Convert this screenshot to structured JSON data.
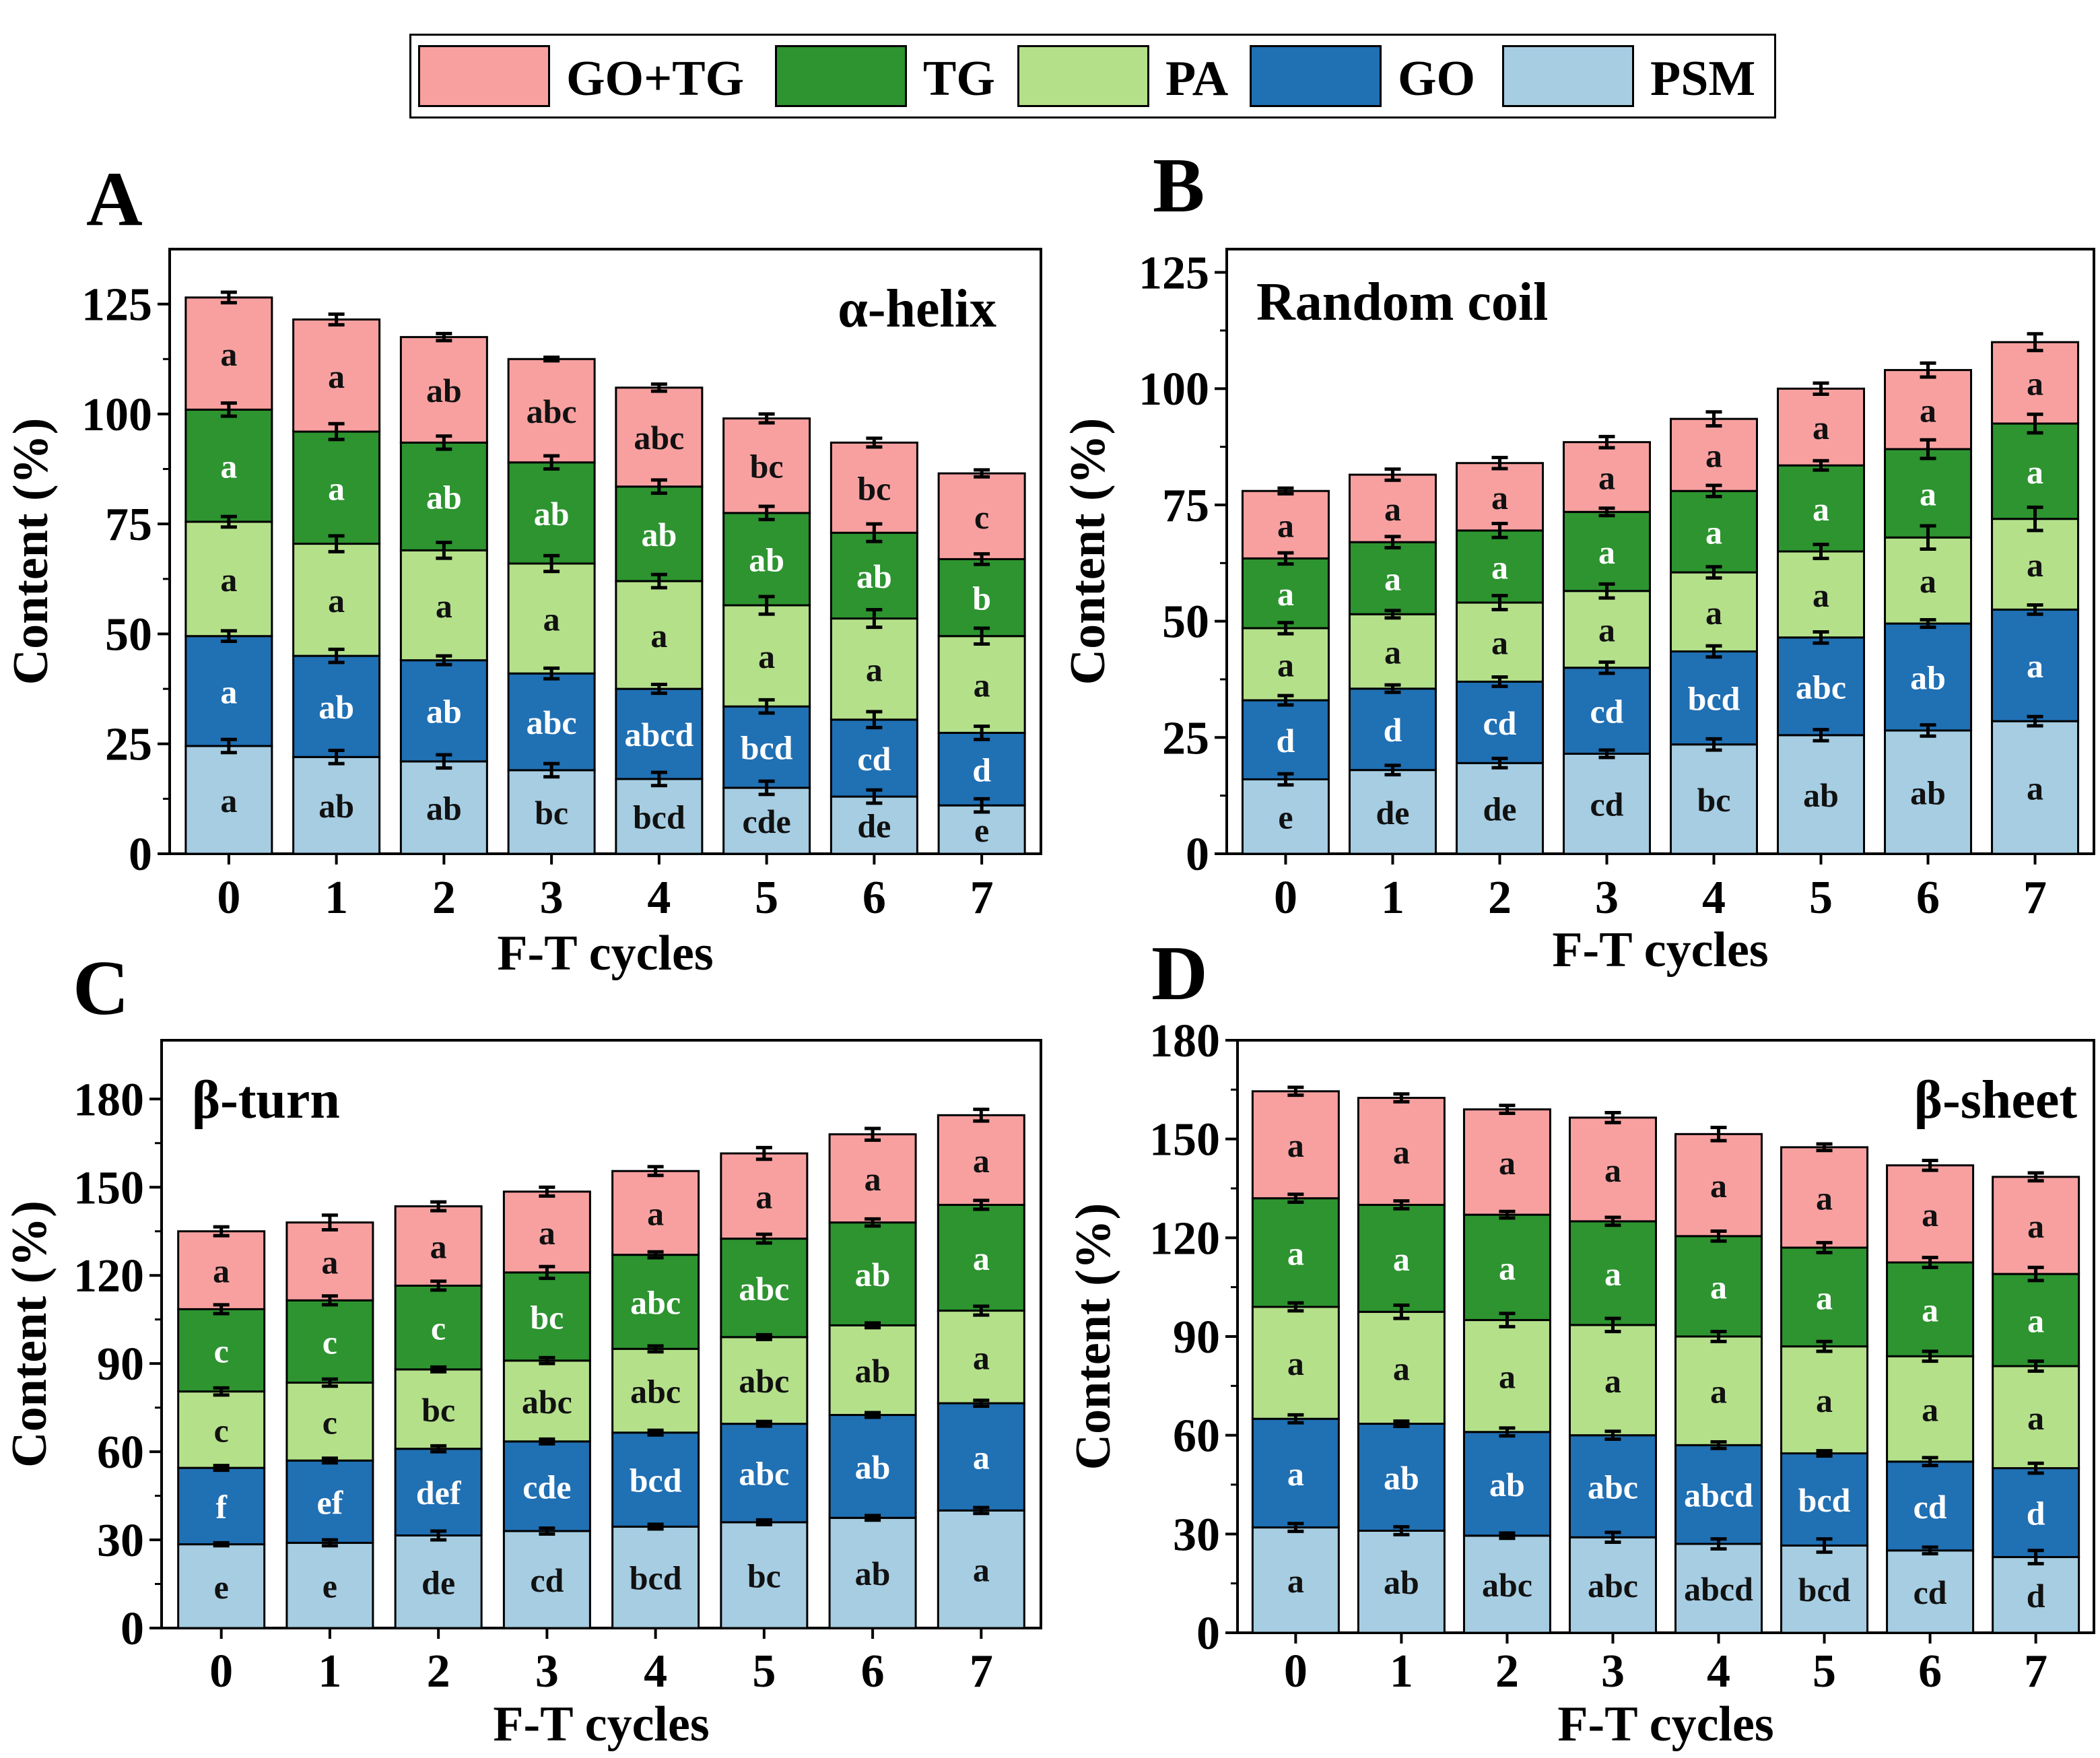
{
  "legend": {
    "items": [
      {
        "label": "GO+TG",
        "color": "#f8a0a0"
      },
      {
        "label": "TG",
        "color": "#2d9430"
      },
      {
        "label": "PA",
        "color": "#b4e08a"
      },
      {
        "label": "GO",
        "color": "#2070b4"
      },
      {
        "label": "PSM",
        "color": "#a6cde2"
      }
    ]
  },
  "chart_data": [
    {
      "panel": "A",
      "type": "bar",
      "stacked": true,
      "title": "α-helix",
      "xlabel": "F-T cycles",
      "ylabel": "Content (%)",
      "categories": [
        "0",
        "1",
        "2",
        "3",
        "4",
        "5",
        "6",
        "7"
      ],
      "ylim": [
        0,
        137.5
      ],
      "yticks": [
        0,
        25,
        50,
        75,
        100,
        125
      ],
      "series": [
        {
          "name": "PSM",
          "values": [
            24.5,
            22,
            21,
            19,
            17,
            15,
            13,
            11
          ],
          "errors": [
            1.5,
            1.5,
            1.5,
            1.5,
            1.5,
            1.5,
            1.5,
            1.5
          ],
          "labels": [
            "a",
            "ab",
            "ab",
            "bc",
            "bcd",
            "cde",
            "de",
            "e"
          ]
        },
        {
          "name": "GO",
          "values": [
            25,
            23,
            23,
            22,
            20.5,
            18.5,
            17.5,
            16.5
          ],
          "errors": [
            1.2,
            1.5,
            1,
            1.2,
            1,
            1.5,
            1.8,
            1.5
          ],
          "labels": [
            "a",
            "ab",
            "ab",
            "abc",
            "abcd",
            "bcd",
            "cd",
            "d"
          ]
        },
        {
          "name": "PA",
          "values": [
            26,
            25.5,
            25,
            25,
            24.5,
            23,
            23,
            22
          ],
          "errors": [
            1.2,
            1.8,
            1.8,
            1.8,
            1.5,
            2,
            2,
            1.8
          ],
          "labels": [
            "a",
            "a",
            "a",
            "a",
            "a",
            "a",
            "a",
            "a"
          ]
        },
        {
          "name": "TG",
          "values": [
            25.5,
            25.5,
            24.5,
            23,
            21.5,
            21,
            19.5,
            17.5
          ],
          "errors": [
            1.5,
            1.8,
            1.5,
            1.5,
            1.5,
            1.5,
            2,
            1.2
          ],
          "labels": [
            "a",
            "a",
            "ab",
            "ab",
            "ab",
            "ab",
            "ab",
            "b"
          ]
        },
        {
          "name": "GO+TG",
          "values": [
            25.5,
            25.5,
            24,
            23.5,
            22.5,
            21.5,
            20.5,
            19.5
          ],
          "errors": [
            1.2,
            1.2,
            0.8,
            0.4,
            0.8,
            1,
            1,
            0.8
          ],
          "labels": [
            "a",
            "a",
            "ab",
            "abc",
            "abc",
            "bc",
            "bc",
            "c"
          ]
        }
      ]
    },
    {
      "panel": "B",
      "type": "bar",
      "stacked": true,
      "title": "Random coil",
      "xlabel": "F-T cycles",
      "ylabel": "Content (%)",
      "categories": [
        "0",
        "1",
        "2",
        "3",
        "4",
        "5",
        "6",
        "7"
      ],
      "ylim": [
        0,
        130
      ],
      "yticks": [
        0,
        25,
        50,
        75,
        100,
        125
      ],
      "series": [
        {
          "name": "PSM",
          "values": [
            16,
            18,
            19.5,
            21.5,
            23.5,
            25.5,
            26.5,
            28.5
          ],
          "errors": [
            1.2,
            1,
            1,
            0.8,
            1.2,
            1.2,
            1.2,
            1
          ],
          "labels": [
            "e",
            "de",
            "de",
            "cd",
            "bc",
            "ab",
            "ab",
            "a"
          ]
        },
        {
          "name": "GO",
          "values": [
            17,
            17.5,
            17.5,
            18.5,
            20,
            21,
            23,
            24
          ],
          "errors": [
            1,
            0.8,
            1,
            1.2,
            1.2,
            1.2,
            0.8,
            1
          ],
          "labels": [
            "d",
            "d",
            "cd",
            "cd",
            "bcd",
            "abc",
            "ab",
            "a"
          ]
        },
        {
          "name": "PA",
          "values": [
            15.5,
            16,
            17,
            16.5,
            17,
            18.5,
            18.5,
            19.5
          ],
          "errors": [
            1.2,
            0.8,
            1.5,
            1.5,
            1.2,
            1.5,
            2.5,
            2.5
          ],
          "labels": [
            "a",
            "a",
            "a",
            "a",
            "a",
            "a",
            "a",
            "a"
          ]
        },
        {
          "name": "TG",
          "values": [
            15,
            15.5,
            15.5,
            17,
            17.5,
            18.5,
            19,
            20.5
          ],
          "errors": [
            1.2,
            1.2,
            1.5,
            0.8,
            1.2,
            1,
            2,
            2
          ],
          "labels": [
            "a",
            "a",
            "a",
            "a",
            "a",
            "a",
            "a",
            "a"
          ]
        },
        {
          "name": "GO+TG",
          "values": [
            14.5,
            14.5,
            14.5,
            15,
            15.5,
            16.5,
            17,
            17.5
          ],
          "errors": [
            0.6,
            1.2,
            1.2,
            1.2,
            1.5,
            1.2,
            1.5,
            1.8
          ],
          "labels": [
            "a",
            "a",
            "a",
            "a",
            "a",
            "a",
            "a",
            "a"
          ]
        }
      ]
    },
    {
      "panel": "C",
      "type": "bar",
      "stacked": true,
      "title": "β-turn",
      "xlabel": "F-T cycles",
      "ylabel": "Content (%)",
      "categories": [
        "0",
        "1",
        "2",
        "3",
        "4",
        "5",
        "6",
        "7"
      ],
      "ylim": [
        0,
        200
      ],
      "yticks": [
        0,
        30,
        60,
        90,
        120,
        150,
        180
      ],
      "series": [
        {
          "name": "PSM",
          "values": [
            28.5,
            29,
            31.5,
            33,
            34.5,
            36,
            37.5,
            40
          ],
          "errors": [
            0.5,
            1,
            1.5,
            1,
            0.8,
            0.8,
            0.8,
            1
          ],
          "labels": [
            "e",
            "e",
            "de",
            "cd",
            "bcd",
            "bc",
            "ab",
            "a"
          ]
        },
        {
          "name": "GO",
          "values": [
            26,
            28,
            29.5,
            30.5,
            32,
            33.5,
            35,
            36.5
          ],
          "errors": [
            0.8,
            0.8,
            1,
            0.8,
            0.8,
            0.8,
            0.8,
            1
          ],
          "labels": [
            "f",
            "ef",
            "def",
            "cde",
            "bcd",
            "abc",
            "ab",
            "a"
          ]
        },
        {
          "name": "PA",
          "values": [
            26,
            26.5,
            27,
            27.5,
            28.5,
            29.5,
            30.5,
            31.5
          ],
          "errors": [
            1.2,
            1.2,
            0.8,
            1,
            1,
            0.8,
            0.8,
            1.5
          ],
          "labels": [
            "c",
            "c",
            "bc",
            "abc",
            "abc",
            "abc",
            "ab",
            "a"
          ]
        },
        {
          "name": "TG",
          "values": [
            28,
            28,
            28.5,
            30,
            32,
            33.5,
            35,
            36
          ],
          "errors": [
            1.5,
            1.5,
            1.5,
            2,
            1,
            1.5,
            1.2,
            1.5
          ],
          "labels": [
            "c",
            "c",
            "c",
            "bc",
            "abc",
            "abc",
            "ab",
            "a"
          ]
        },
        {
          "name": "GO+TG",
          "values": [
            26.5,
            26.5,
            27,
            27.5,
            28.5,
            29,
            30,
            30.5
          ],
          "errors": [
            1.5,
            2.5,
            1.5,
            1.5,
            1.5,
            2,
            2,
            2
          ],
          "labels": [
            "a",
            "a",
            "a",
            "a",
            "a",
            "a",
            "a",
            "a"
          ]
        }
      ]
    },
    {
      "panel": "D",
      "type": "bar",
      "stacked": true,
      "title": "β-sheet",
      "xlabel": "F-T cycles",
      "ylabel": "Content (%)",
      "categories": [
        "0",
        "1",
        "2",
        "3",
        "4",
        "5",
        "6",
        "7"
      ],
      "ylim": [
        0,
        180
      ],
      "yticks": [
        0,
        30,
        60,
        90,
        120,
        150,
        180
      ],
      "series": [
        {
          "name": "PSM",
          "values": [
            32,
            31,
            29.5,
            29,
            27,
            26.5,
            25,
            23
          ],
          "errors": [
            1.2,
            1.2,
            0.8,
            1.5,
            1.5,
            2,
            1,
            2
          ],
          "labels": [
            "a",
            "ab",
            "abc",
            "abc",
            "abcd",
            "bcd",
            "cd",
            "d"
          ]
        },
        {
          "name": "GO",
          "values": [
            33,
            32.5,
            31.5,
            31,
            30,
            28,
            27,
            27
          ],
          "errors": [
            1.2,
            0.8,
            1.2,
            1.2,
            1,
            0.8,
            1.2,
            1.5
          ],
          "labels": [
            "a",
            "ab",
            "ab",
            "abc",
            "abcd",
            "bcd",
            "cd",
            "d"
          ]
        },
        {
          "name": "PA",
          "values": [
            34,
            34,
            34,
            33.5,
            33,
            32.5,
            32,
            31
          ],
          "errors": [
            1.2,
            2,
            2,
            2,
            1.5,
            1.5,
            1.5,
            1.5
          ],
          "labels": [
            "a",
            "a",
            "a",
            "a",
            "a",
            "a",
            "a",
            "a"
          ]
        },
        {
          "name": "TG",
          "values": [
            33,
            32.5,
            32,
            31.5,
            30.5,
            30,
            28.5,
            28
          ],
          "errors": [
            1.2,
            1.2,
            1,
            1.2,
            1.5,
            1.5,
            1.5,
            2
          ],
          "labels": [
            "a",
            "a",
            "a",
            "a",
            "a",
            "a",
            "a",
            "a"
          ]
        },
        {
          "name": "GO+TG",
          "values": [
            32.5,
            32.5,
            32,
            31.5,
            31,
            30.5,
            29.5,
            29.5
          ],
          "errors": [
            1.2,
            1.2,
            1.2,
            1.5,
            2,
            1,
            1.5,
            1.2
          ],
          "labels": [
            "a",
            "a",
            "a",
            "a",
            "a",
            "a",
            "a",
            "a"
          ]
        }
      ]
    }
  ]
}
